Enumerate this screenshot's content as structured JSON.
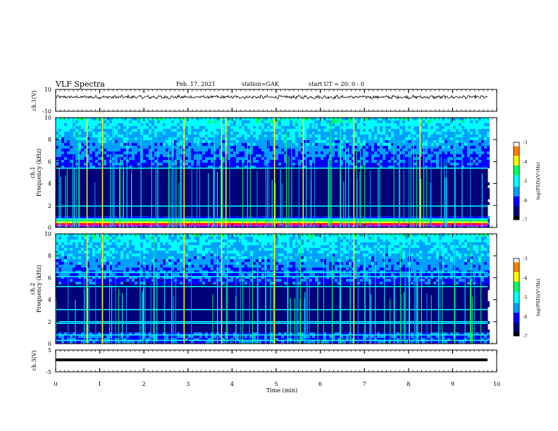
{
  "header": {
    "title": "VLF Spectra",
    "date": "Feb. 17, 2021",
    "station": "station=GAK",
    "start": "start  UT =   20: 0  : 0"
  },
  "colors": {
    "spectrogram_scale": [
      "#000000",
      "#00007a",
      "#0000ff",
      "#00a0ff",
      "#00ffff",
      "#00ff60",
      "#ffff00",
      "#ff8000",
      "#ff0000",
      "#ffffff"
    ],
    "trace": "#000000"
  },
  "chart_data": [
    {
      "id": "ch1_waveform",
      "type": "line",
      "ylabel": "ch.1(V)",
      "ylim": [
        -10,
        10
      ],
      "y_ticks": [
        "10",
        "-10"
      ],
      "x_range_min": [
        0,
        9.8
      ],
      "series": [
        {
          "values_approx": "noisy trace around +3 V"
        }
      ]
    },
    {
      "id": "ch1_spectrogram",
      "type": "heatmap",
      "ylabel_top": "ch.1",
      "ylabel": "Frequency (kHz)",
      "ylim": [
        0,
        10
      ],
      "y_ticks": [
        "0",
        "2",
        "4",
        "6",
        "8",
        "10"
      ],
      "x_range_min": [
        0,
        9.8
      ],
      "colorbar": {
        "label": "log(PSD)(V²/Hz)",
        "range": [
          -7,
          -3
        ],
        "ticks": [
          "-3",
          "-4",
          "-5",
          "-6",
          "-7"
        ]
      },
      "features": {
        "low_band_kHz": [
          0.1,
          1.0
        ],
        "hum_lines_kHz": [
          1.95,
          5.4
        ],
        "broadband_bursts_min": [
          0.7,
          1.05,
          2.9,
          3.75,
          3.85,
          4.95,
          5.6,
          6.75,
          8.25
        ]
      }
    },
    {
      "id": "ch2_spectrogram",
      "type": "heatmap",
      "ylabel_top": "ch.2",
      "ylabel": "Frequency (kHz)",
      "ylim": [
        0,
        10
      ],
      "y_ticks": [
        "0",
        "2",
        "4",
        "6",
        "8",
        "10"
      ],
      "x_range_min": [
        0,
        9.8
      ],
      "colorbar": {
        "label": "log(PSD)(V²/Hz)",
        "range": [
          -7,
          -3
        ],
        "ticks": [
          "-3",
          "-4",
          "-5",
          "-6",
          "-7"
        ]
      },
      "features": {
        "hum_lines_kHz": [
          0.3,
          0.8,
          1.85,
          2.0,
          3.1,
          5.2,
          6.1,
          6.5
        ],
        "broadband_bursts_min": [
          0.7,
          1.05,
          2.9,
          3.75,
          4.95,
          6.75
        ]
      }
    },
    {
      "id": "ch3_waveform",
      "type": "line",
      "ylabel": "ch.3(V)",
      "ylim": [
        -5,
        5
      ],
      "y_ticks": [
        "5",
        "-5"
      ],
      "x_range_min": [
        0,
        9.8
      ],
      "series": [
        {
          "values_approx": "flat trace near -1 V"
        }
      ]
    }
  ],
  "xaxis": {
    "label": "Time  (min)",
    "ticks": [
      "0",
      "1",
      "2",
      "3",
      "4",
      "5",
      "6",
      "7",
      "8",
      "9",
      "10"
    ],
    "range": [
      0,
      10
    ]
  }
}
